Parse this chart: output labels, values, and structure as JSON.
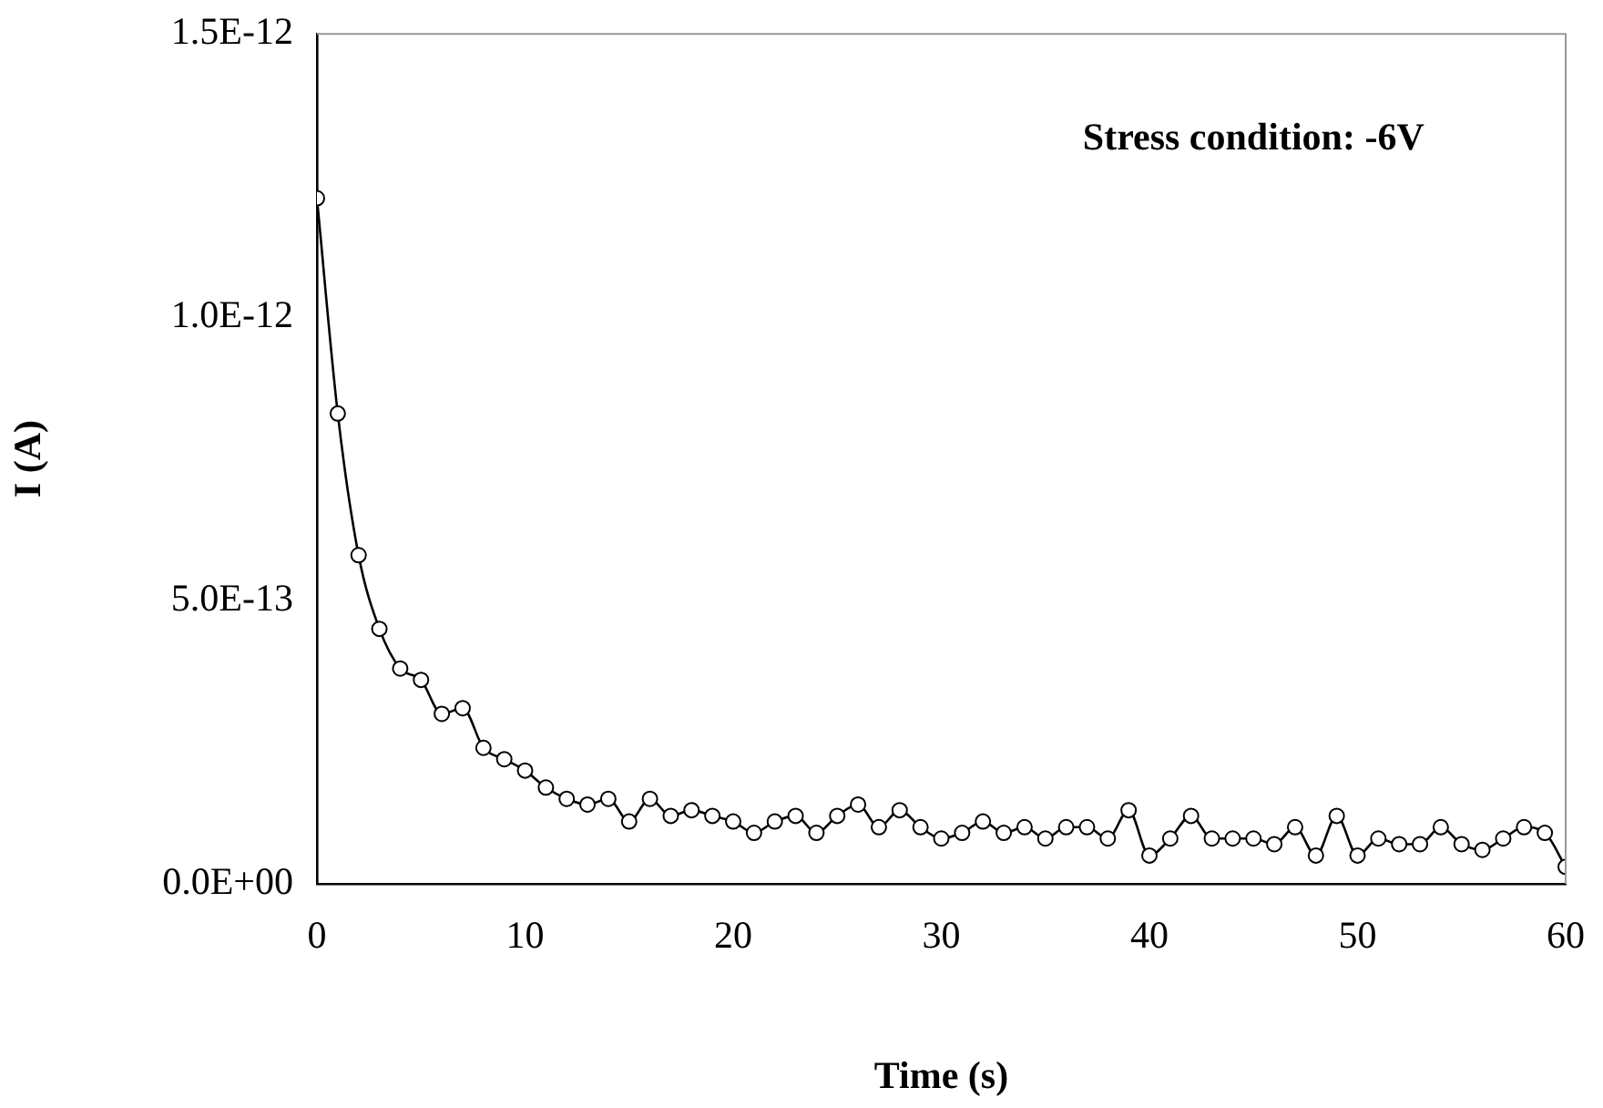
{
  "chart_data": {
    "type": "line",
    "xlabel": "Time (s)",
    "ylabel": "I (A)",
    "annotations": [
      "Stress condition: -6V"
    ],
    "x": [
      0,
      1,
      2,
      3,
      4,
      5,
      6,
      7,
      8,
      9,
      10,
      11,
      12,
      13,
      14,
      15,
      16,
      17,
      18,
      19,
      20,
      21,
      22,
      23,
      24,
      25,
      26,
      27,
      28,
      29,
      30,
      31,
      32,
      33,
      34,
      35,
      36,
      37,
      38,
      39,
      40,
      41,
      42,
      43,
      44,
      45,
      46,
      47,
      48,
      49,
      50,
      51,
      52,
      53,
      54,
      55,
      56,
      57,
      58,
      59,
      60
    ],
    "series": [
      {
        "color": "#000000",
        "values": [
          1.21e-12,
          8.3e-13,
          5.8e-13,
          4.5e-13,
          3.8e-13,
          3.6e-13,
          3e-13,
          3.1e-13,
          2.4e-13,
          2.2e-13,
          2e-13,
          1.7e-13,
          1.5e-13,
          1.4e-13,
          1.5e-13,
          1.1e-13,
          1.5e-13,
          1.2e-13,
          1.3e-13,
          1.2e-13,
          1.1e-13,
          9e-14,
          1.1e-13,
          1.2e-13,
          9e-14,
          1.2e-13,
          1.4e-13,
          1e-13,
          1.3e-13,
          1e-13,
          8e-14,
          9e-14,
          1.1e-13,
          9e-14,
          1e-13,
          8e-14,
          1e-13,
          1e-13,
          8e-14,
          1.3e-13,
          5e-14,
          8e-14,
          1.2e-13,
          8e-14,
          8e-14,
          8e-14,
          7e-14,
          1e-13,
          5e-14,
          1.2e-13,
          5e-14,
          8e-14,
          7e-14,
          7e-14,
          1e-13,
          7e-14,
          6e-14,
          8e-14,
          1e-13,
          9e-14,
          3e-14
        ]
      }
    ],
    "xlim": [
      0,
      60
    ],
    "xticks": [
      0,
      10,
      20,
      30,
      40,
      50,
      60
    ],
    "ylim": [
      0,
      1.5e-12
    ],
    "yticks": [
      {
        "value": 0,
        "label": "0.0E+00"
      },
      {
        "value": 5e-13,
        "label": "5.0E-13"
      },
      {
        "value": 1e-12,
        "label": "1.0E-12"
      },
      {
        "value": 1.5e-12,
        "label": "1.5E-12"
      }
    ],
    "grid": false,
    "legend": false,
    "marker": "circle",
    "line_style": "solid"
  }
}
